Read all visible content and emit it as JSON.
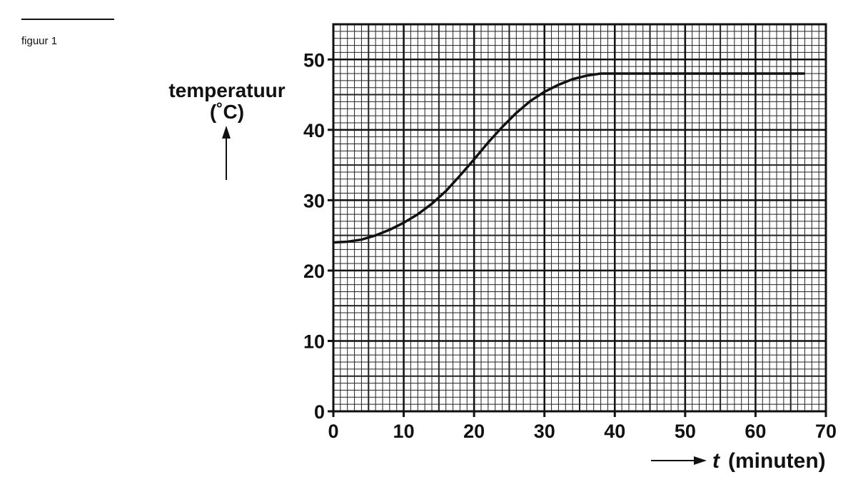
{
  "figure_label": "figuur 1",
  "chart_data": {
    "type": "line",
    "ylabel": [
      "temperatuur",
      "(˚C)"
    ],
    "xlabel_symbol": "t",
    "xlabel": "(minuten)",
    "x": [
      0,
      2,
      4,
      6,
      8,
      10,
      12,
      14,
      16,
      18,
      20,
      22,
      24,
      26,
      28,
      30,
      32,
      34,
      36,
      38,
      40,
      50,
      60,
      67
    ],
    "series": [
      {
        "color": "#111111",
        "values": [
          24,
          24.1,
          24.4,
          25,
          25.8,
          26.8,
          28,
          29.5,
          31.3,
          33.5,
          35.8,
          38.2,
          40.4,
          42.4,
          44.1,
          45.4,
          46.4,
          47.2,
          47.7,
          48,
          48,
          48,
          48,
          48
        ]
      }
    ],
    "xlim": [
      0,
      70
    ],
    "ylim": [
      0,
      55
    ],
    "xticks": [
      0,
      10,
      20,
      30,
      40,
      50,
      60,
      70
    ],
    "yticks": [
      0,
      10,
      20,
      30,
      40,
      50
    ],
    "grid": true
  }
}
